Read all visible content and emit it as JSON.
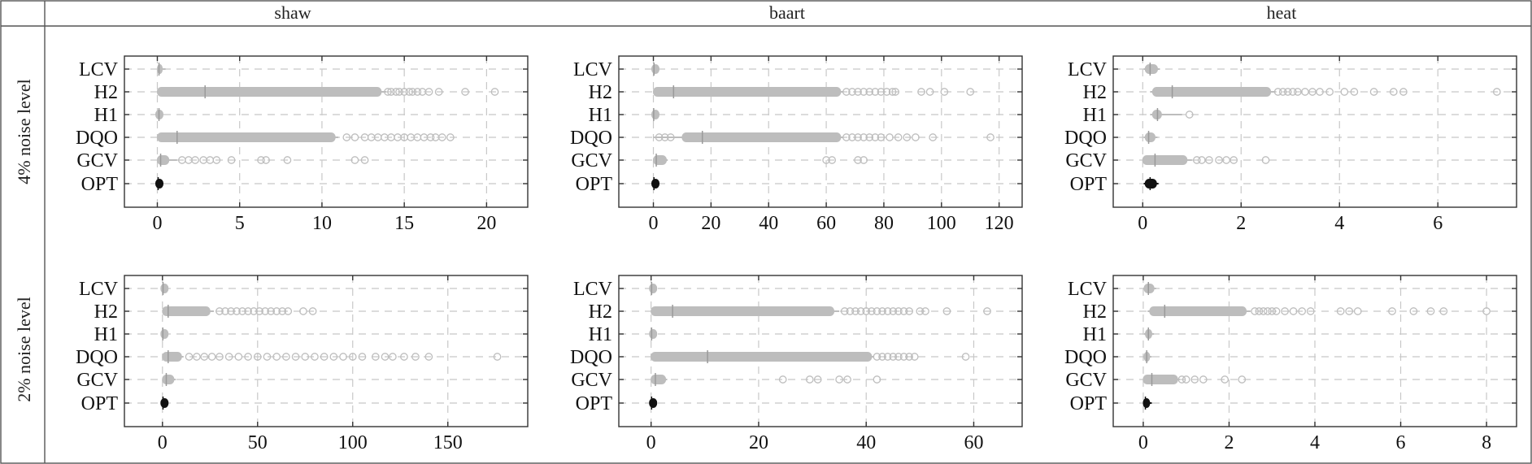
{
  "table": {
    "columns": [
      "shaw",
      "baart",
      "heat"
    ],
    "rows": [
      "4% noise level",
      "2% noise level"
    ]
  },
  "colors": {
    "box": "#bdbdbd",
    "opt": "#111111",
    "grid": "#c8c8c8",
    "frame": "#333333"
  },
  "chart_data": [
    {
      "type": "boxplot",
      "row": "4% noise level",
      "column": "shaw",
      "categories": [
        "LCV",
        "H2",
        "H1",
        "DQO",
        "GCV",
        "OPT"
      ],
      "xlim": [
        -2,
        22.5
      ],
      "xticks": [
        0,
        5,
        10,
        15,
        20
      ],
      "grid": true,
      "series": [
        {
          "name": "LCV",
          "q1": 0.0,
          "median": 0.1,
          "q3": 0.3,
          "whisker_low": 0,
          "whisker_high": 0.5,
          "outliers": []
        },
        {
          "name": "H2",
          "q1": 0.0,
          "median": 2.9,
          "q3": 13.6,
          "whisker_low": 0,
          "whisker_high": 13.9,
          "outliers": [
            14.0,
            14.2,
            14.5,
            14.7,
            15.0,
            15.3,
            15.5,
            15.8,
            16.1,
            16.5,
            17.1,
            18.7,
            20.5
          ]
        },
        {
          "name": "H1",
          "q1": 0.0,
          "median": 0.1,
          "q3": 0.2,
          "whisker_low": 0,
          "whisker_high": 0.3,
          "outliers": []
        },
        {
          "name": "DQO",
          "q1": 0.0,
          "median": 1.2,
          "q3": 10.8,
          "whisker_low": 0,
          "whisker_high": 11.0,
          "outliers": [
            11.5,
            12.0,
            12.6,
            13.0,
            13.4,
            13.8,
            14.2,
            14.6,
            15.0,
            15.4,
            15.8,
            16.2,
            16.6,
            16.9,
            17.3,
            17.8
          ]
        },
        {
          "name": "GCV",
          "q1": 0.0,
          "median": 0.2,
          "q3": 0.7,
          "whisker_low": 0,
          "whisker_high": 1.2,
          "outliers": [
            1.5,
            1.9,
            2.3,
            2.8,
            3.2,
            3.6,
            4.5,
            6.3,
            6.6,
            7.9,
            12.0,
            12.6
          ]
        },
        {
          "name": "OPT",
          "q1": 0.0,
          "median": 0.05,
          "q3": 0.15,
          "whisker_low": 0,
          "whisker_high": 0.3,
          "outliers": []
        }
      ]
    },
    {
      "type": "boxplot",
      "row": "4% noise level",
      "column": "baart",
      "categories": [
        "LCV",
        "H2",
        "H1",
        "DQO",
        "GCV",
        "OPT"
      ],
      "xlim": [
        -12,
        128
      ],
      "xticks": [
        0,
        20,
        40,
        60,
        80,
        100,
        120
      ],
      "grid": true,
      "series": [
        {
          "name": "LCV",
          "q1": 0.0,
          "median": 0.2,
          "q3": 0.5,
          "whisker_low": 0,
          "whisker_high": 1.0,
          "outliers": []
        },
        {
          "name": "H2",
          "q1": 0.0,
          "median": 7.0,
          "q3": 65.0,
          "whisker_low": 0,
          "whisker_high": 66.0,
          "outliers": [
            67,
            69,
            71,
            73,
            75,
            77,
            79,
            81,
            83,
            84,
            93,
            96,
            101,
            110
          ]
        },
        {
          "name": "H1",
          "q1": 0.0,
          "median": 0.1,
          "q3": 0.3,
          "whisker_low": 0,
          "whisker_high": 0.5,
          "outliers": []
        },
        {
          "name": "DQO",
          "q1": 10.0,
          "median": 17.0,
          "q3": 65.0,
          "whisker_low": 0,
          "whisker_high": 66.0,
          "outliers": [
            2,
            4,
            6,
            67,
            69,
            71,
            73,
            75,
            77,
            79,
            82,
            85,
            88,
            91,
            97,
            117
          ]
        },
        {
          "name": "GCV",
          "q1": 0.0,
          "median": 1.0,
          "q3": 4.5,
          "whisker_low": 0,
          "whisker_high": 5.0,
          "outliers": [
            60,
            62,
            71,
            73
          ]
        },
        {
          "name": "OPT",
          "q1": 0.0,
          "median": 0.2,
          "q3": 0.6,
          "whisker_low": 0,
          "whisker_high": 1.0,
          "outliers": []
        }
      ]
    },
    {
      "type": "boxplot",
      "row": "4% noise level",
      "column": "heat",
      "categories": [
        "LCV",
        "H2",
        "H1",
        "DQO",
        "GCV",
        "OPT"
      ],
      "xlim": [
        -0.6,
        7.6
      ],
      "xticks": [
        0,
        2,
        4,
        6
      ],
      "grid": true,
      "series": [
        {
          "name": "LCV",
          "q1": 0.05,
          "median": 0.15,
          "q3": 0.3,
          "whisker_low": 0.02,
          "whisker_high": 0.35,
          "outliers": []
        },
        {
          "name": "H2",
          "q1": 0.2,
          "median": 0.6,
          "q3": 2.6,
          "whisker_low": 0.15,
          "whisker_high": 2.7,
          "outliers": [
            2.75,
            2.85,
            2.95,
            3.05,
            3.15,
            3.3,
            3.45,
            3.6,
            3.8,
            4.1,
            4.3,
            4.7,
            5.1,
            5.3,
            7.2
          ]
        },
        {
          "name": "H1",
          "q1": 0.2,
          "median": 0.3,
          "q3": 0.38,
          "whisker_low": 0.15,
          "whisker_high": 0.8,
          "outliers": [
            0.95
          ]
        },
        {
          "name": "DQO",
          "q1": 0.05,
          "median": 0.12,
          "q3": 0.25,
          "whisker_low": 0.02,
          "whisker_high": 0.3,
          "outliers": []
        },
        {
          "name": "GCV",
          "q1": 0.0,
          "median": 0.25,
          "q3": 0.9,
          "whisker_low": 0,
          "whisker_high": 1.0,
          "outliers": [
            1.1,
            1.2,
            1.35,
            1.55,
            1.7,
            1.85,
            2.5
          ]
        },
        {
          "name": "OPT",
          "q1": 0.05,
          "median": 0.15,
          "q3": 0.28,
          "whisker_low": 0.02,
          "whisker_high": 0.32,
          "outliers": []
        }
      ]
    },
    {
      "type": "boxplot",
      "row": "2% noise level",
      "column": "shaw",
      "categories": [
        "LCV",
        "H2",
        "H1",
        "DQO",
        "GCV",
        "OPT"
      ],
      "xlim": [
        -20,
        192
      ],
      "xticks": [
        0,
        50,
        100,
        150
      ],
      "grid": true,
      "series": [
        {
          "name": "LCV",
          "q1": 0.0,
          "median": 0.3,
          "q3": 1.0,
          "whisker_low": 0,
          "whisker_high": 2.0,
          "outliers": []
        },
        {
          "name": "H2",
          "q1": 0.0,
          "median": 3.0,
          "q3": 25.0,
          "whisker_low": 0,
          "whisker_high": 27.0,
          "outliers": [
            30,
            33,
            36,
            39,
            42,
            45,
            48,
            51,
            54,
            57,
            60,
            63,
            66,
            74,
            79
          ]
        },
        {
          "name": "H1",
          "q1": 0.0,
          "median": 0.2,
          "q3": 0.6,
          "whisker_low": 0,
          "whisker_high": 1.2,
          "outliers": []
        },
        {
          "name": "DQO",
          "q1": 0.0,
          "median": 3.0,
          "q3": 10.0,
          "whisker_low": 0,
          "whisker_high": 11.0,
          "outliers": [
            14,
            18,
            22,
            26,
            30,
            35,
            40,
            45,
            50,
            55,
            60,
            65,
            70,
            75,
            80,
            85,
            90,
            95,
            100,
            105,
            112,
            117,
            121,
            127,
            133,
            140,
            176
          ]
        },
        {
          "name": "GCV",
          "q1": 0.0,
          "median": 2.0,
          "q3": 6.0,
          "whisker_low": 0,
          "whisker_high": 7.0,
          "outliers": []
        },
        {
          "name": "OPT",
          "q1": 0.0,
          "median": 0.3,
          "q3": 1.0,
          "whisker_low": 0,
          "whisker_high": 3.0,
          "outliers": []
        }
      ]
    },
    {
      "type": "boxplot",
      "row": "2% noise level",
      "column": "baart",
      "categories": [
        "LCV",
        "H2",
        "H1",
        "DQO",
        "GCV",
        "OPT"
      ],
      "xlim": [
        -6,
        69
      ],
      "xticks": [
        0,
        20,
        40,
        60
      ],
      "grid": true,
      "series": [
        {
          "name": "LCV",
          "q1": 0.0,
          "median": 0.1,
          "q3": 0.3,
          "whisker_low": 0,
          "whisker_high": 0.6,
          "outliers": []
        },
        {
          "name": "H2",
          "q1": 0.0,
          "median": 4.0,
          "q3": 34.0,
          "whisker_low": 0,
          "whisker_high": 35.0,
          "outliers": [
            36,
            37,
            38,
            39,
            40,
            41,
            42,
            43,
            44,
            45,
            46,
            47,
            48,
            50,
            51,
            55,
            62.5
          ]
        },
        {
          "name": "H1",
          "q1": 0.0,
          "median": 0.1,
          "q3": 0.3,
          "whisker_low": 0,
          "whisker_high": 0.6,
          "outliers": []
        },
        {
          "name": "DQO",
          "q1": 0.0,
          "median": 10.5,
          "q3": 41.0,
          "whisker_low": 0,
          "whisker_high": 41.5,
          "outliers": [
            42,
            43,
            44,
            45,
            46,
            47,
            48,
            49,
            58.5
          ]
        },
        {
          "name": "GCV",
          "q1": 0.0,
          "median": 0.8,
          "q3": 2.7,
          "whisker_low": 0,
          "whisker_high": 3.0,
          "outliers": [
            24.5,
            29.5,
            31,
            35,
            36.5,
            42
          ]
        },
        {
          "name": "OPT",
          "q1": 0.0,
          "median": 0.1,
          "q3": 0.3,
          "whisker_low": 0,
          "whisker_high": 0.6,
          "outliers": []
        }
      ]
    },
    {
      "type": "boxplot",
      "row": "2% noise level",
      "column": "heat",
      "categories": [
        "LCV",
        "H2",
        "H1",
        "DQO",
        "GCV",
        "OPT"
      ],
      "xlim": [
        -0.7,
        8.7
      ],
      "xticks": [
        0,
        2,
        4,
        6,
        8
      ],
      "grid": true,
      "series": [
        {
          "name": "LCV",
          "q1": 0.02,
          "median": 0.12,
          "q3": 0.25,
          "whisker_low": 0.0,
          "whisker_high": 0.3,
          "outliers": []
        },
        {
          "name": "H2",
          "q1": 0.15,
          "median": 0.5,
          "q3": 2.4,
          "whisker_low": 0.1,
          "whisker_high": 2.5,
          "outliers": [
            2.6,
            2.7,
            2.8,
            2.9,
            3.0,
            3.1,
            3.3,
            3.5,
            3.7,
            3.9,
            4.6,
            4.8,
            5.0,
            5.8,
            6.3,
            6.7,
            7.0,
            8.0
          ]
        },
        {
          "name": "H1",
          "q1": 0.05,
          "median": 0.12,
          "q3": 0.2,
          "whisker_low": 0.02,
          "whisker_high": 0.25,
          "outliers": []
        },
        {
          "name": "DQO",
          "q1": 0.02,
          "median": 0.08,
          "q3": 0.15,
          "whisker_low": 0.0,
          "whisker_high": 0.2,
          "outliers": []
        },
        {
          "name": "GCV",
          "q1": 0.0,
          "median": 0.2,
          "q3": 0.8,
          "whisker_low": 0,
          "whisker_high": 0.85,
          "outliers": [
            0.9,
            1.0,
            1.2,
            1.4,
            1.9,
            2.3
          ]
        },
        {
          "name": "OPT",
          "q1": 0.0,
          "median": 0.05,
          "q3": 0.15,
          "whisker_low": 0,
          "whisker_high": 0.2,
          "outliers": []
        }
      ]
    }
  ]
}
